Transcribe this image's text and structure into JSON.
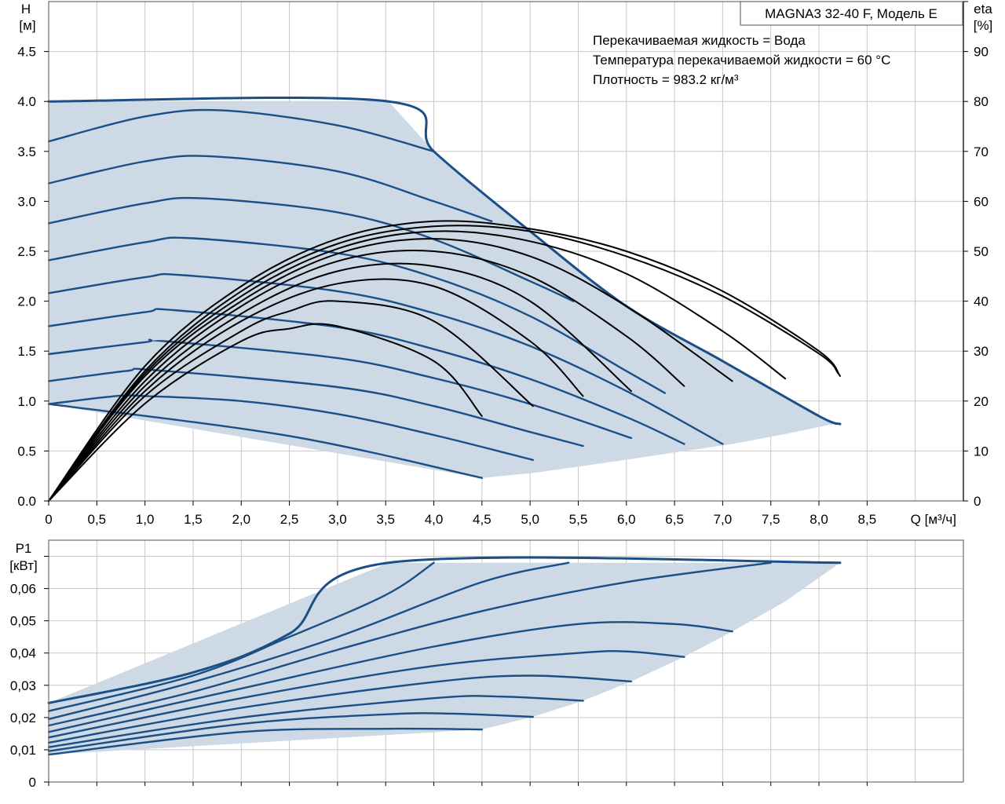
{
  "colors": {
    "envelope_fill": "#cdd9e5",
    "envelope_line": "#1b4f86",
    "eta_line": "#000000",
    "grid": "#c8c8c8"
  },
  "chart_data": [
    {
      "id": "qh",
      "type": "line",
      "title": "MAGNA3 32-40 F, Модель E",
      "info_lines": [
        "Перекачиваемая жидкость = Вода",
        "Температура перекачиваемой жидкости = 60 °C",
        "Плотность = 983.2 кг/м³"
      ],
      "ylabel": [
        "H",
        "[м]"
      ],
      "y2label": [
        "eta",
        "[%]"
      ],
      "xlabel": "Q [м³/ч]",
      "xlim": [
        0,
        9.5
      ],
      "ylim": [
        0,
        5.0
      ],
      "y2lim": [
        0,
        100
      ],
      "x_ticks": [
        0,
        0.5,
        1.0,
        1.5,
        2.0,
        2.5,
        3.0,
        3.5,
        4.0,
        4.5,
        5.0,
        5.5,
        6.0,
        6.5,
        7.0,
        7.5,
        8.0,
        8.5
      ],
      "x_tick_labels": [
        "0",
        "0,5",
        "1,0",
        "1,5",
        "2,0",
        "2,5",
        "3,0",
        "3,5",
        "4,0",
        "4,5",
        "5,0",
        "5,5",
        "6,0",
        "6,5",
        "7,0",
        "7,5",
        "8,0",
        "8,5"
      ],
      "y_ticks": [
        0,
        0.5,
        1.0,
        1.5,
        2.0,
        2.5,
        3.0,
        3.5,
        4.0,
        4.5
      ],
      "y_tick_labels": [
        "0.0",
        "0.5",
        "1.0",
        "1.5",
        "2.0",
        "2.5",
        "3.0",
        "3.5",
        "4.0",
        "4.5"
      ],
      "y2_ticks": [
        0,
        10,
        20,
        30,
        40,
        50,
        60,
        70,
        80,
        90
      ],
      "y2_tick_labels": [
        "0",
        "10",
        "20",
        "30",
        "40",
        "50",
        "60",
        "70",
        "80",
        "90"
      ],
      "grid": true,
      "envelope": [
        [
          0,
          4.0
        ],
        [
          3.53,
          4.0
        ],
        [
          4.0,
          3.5
        ],
        [
          5.0,
          2.7
        ],
        [
          6.0,
          1.95
        ],
        [
          7.0,
          1.4
        ],
        [
          8.0,
          0.85
        ],
        [
          8.2,
          0.78
        ],
        [
          7.65,
          0.67
        ],
        [
          7.1,
          0.57
        ],
        [
          6.6,
          0.5
        ],
        [
          6.05,
          0.42
        ],
        [
          5.55,
          0.35
        ],
        [
          5.03,
          0.28
        ],
        [
          4.5,
          0.23
        ],
        [
          0,
          0.97
        ]
      ],
      "series": [
        {
          "kind": "qh",
          "values": [
            [
              0,
              4.0
            ],
            [
              3.53,
              4.0
            ],
            [
              4.0,
              3.5
            ],
            [
              5.0,
              2.7
            ],
            [
              6.0,
              1.95
            ],
            [
              7.0,
              1.4
            ],
            [
              8.0,
              0.85
            ],
            [
              8.22,
              0.77
            ]
          ]
        },
        {
          "kind": "qh",
          "values": [
            [
              0,
              3.6
            ],
            [
              1.0,
              3.85
            ],
            [
              1.8,
              3.91
            ],
            [
              3.0,
              3.76
            ],
            [
              4.0,
              3.5
            ]
          ]
        },
        {
          "kind": "qh",
          "values": [
            [
              0,
              3.18
            ],
            [
              1.0,
              3.4
            ],
            [
              1.7,
              3.45
            ],
            [
              3.0,
              3.3
            ],
            [
              4.0,
              3.0
            ],
            [
              4.6,
              2.8
            ]
          ]
        },
        {
          "kind": "qh",
          "values": [
            [
              0,
              2.78
            ],
            [
              1.0,
              2.98
            ],
            [
              1.6,
              3.03
            ],
            [
              3.0,
              2.89
            ],
            [
              4.0,
              2.62
            ],
            [
              5.0,
              2.2
            ],
            [
              5.45,
              2.0
            ]
          ]
        },
        {
          "kind": "qh",
          "values": [
            [
              0,
              2.41
            ],
            [
              1.0,
              2.59
            ],
            [
              1.5,
              2.63
            ],
            [
              3.0,
              2.48
            ],
            [
              4.0,
              2.24
            ],
            [
              5.0,
              1.85
            ],
            [
              6.0,
              1.3
            ],
            [
              6.4,
              1.08
            ]
          ]
        },
        {
          "kind": "qh",
          "values": [
            [
              0,
              2.08
            ],
            [
              1.0,
              2.24
            ],
            [
              1.4,
              2.26
            ],
            [
              3.0,
              2.1
            ],
            [
              4.0,
              1.88
            ],
            [
              5.0,
              1.55
            ],
            [
              6.0,
              1.1
            ],
            [
              7.0,
              0.57
            ]
          ]
        },
        {
          "kind": "qh",
          "values": [
            [
              0,
              1.75
            ],
            [
              1.0,
              1.89
            ],
            [
              1.3,
              1.91
            ],
            [
              3.0,
              1.74
            ],
            [
              4.0,
              1.52
            ],
            [
              5.0,
              1.22
            ],
            [
              6.0,
              0.84
            ],
            [
              6.6,
              0.57
            ]
          ]
        },
        {
          "kind": "qh",
          "values": [
            [
              0,
              1.47
            ],
            [
              1.0,
              1.59
            ],
            [
              1.2,
              1.6
            ],
            [
              3.0,
              1.43
            ],
            [
              4.0,
              1.23
            ],
            [
              5.0,
              0.97
            ],
            [
              6.05,
              0.63
            ]
          ]
        },
        {
          "kind": "qh",
          "values": [
            [
              0,
              1.2
            ],
            [
              0.8,
              1.3
            ],
            [
              1.1,
              1.31
            ],
            [
              3.0,
              1.14
            ],
            [
              4.0,
              0.95
            ],
            [
              5.0,
              0.69
            ],
            [
              5.55,
              0.55
            ]
          ]
        },
        {
          "kind": "qh",
          "values": [
            [
              0,
              0.97
            ],
            [
              0.7,
              1.05
            ],
            [
              1.0,
              1.05
            ],
            [
              2.0,
              1.0
            ],
            [
              3.0,
              0.87
            ],
            [
              4.0,
              0.66
            ],
            [
              5.03,
              0.41
            ]
          ]
        },
        {
          "kind": "qh",
          "values": [
            [
              4.5,
              0.23
            ],
            [
              2.5,
              0.65
            ],
            [
              0,
              0.97
            ]
          ]
        },
        {
          "kind": "eta",
          "values": [
            [
              0,
              0
            ],
            [
              1.0,
              27
            ],
            [
              2.0,
              43
            ],
            [
              3.0,
              52.5
            ],
            [
              4.0,
              56
            ],
            [
              5.0,
              54.5
            ],
            [
              6.0,
              50
            ],
            [
              7.0,
              42
            ],
            [
              8.0,
              30
            ],
            [
              8.22,
              25
            ]
          ]
        },
        {
          "kind": "eta",
          "values": [
            [
              0,
              0
            ],
            [
              1.0,
              26
            ],
            [
              2.0,
              42
            ],
            [
              3.0,
              51.5
            ],
            [
              4.0,
              55
            ],
            [
              5.0,
              54
            ],
            [
              6.0,
              49
            ],
            [
              7.0,
              41
            ],
            [
              8.0,
              29.5
            ],
            [
              8.2,
              25.5
            ]
          ]
        },
        {
          "kind": "eta",
          "values": [
            [
              0,
              0
            ],
            [
              1.0,
              25.5
            ],
            [
              2.0,
              41
            ],
            [
              3.0,
              50.5
            ],
            [
              4.0,
              54
            ],
            [
              5.0,
              52
            ],
            [
              6.0,
              45.5
            ],
            [
              7.0,
              34
            ],
            [
              7.65,
              24.5
            ]
          ]
        },
        {
          "kind": "eta",
          "values": [
            [
              0,
              0
            ],
            [
              1.0,
              25
            ],
            [
              2.0,
              40
            ],
            [
              3.0,
              49.5
            ],
            [
              4.0,
              52.5
            ],
            [
              5.0,
              49
            ],
            [
              6.0,
              39
            ],
            [
              7.1,
              24
            ]
          ]
        },
        {
          "kind": "eta",
          "values": [
            [
              0,
              0
            ],
            [
              1.0,
              24
            ],
            [
              2.0,
              39
            ],
            [
              3.0,
              48
            ],
            [
              4.0,
              50
            ],
            [
              5.0,
              45
            ],
            [
              6.0,
              33
            ],
            [
              6.6,
              23
            ]
          ]
        },
        {
          "kind": "eta",
          "values": [
            [
              0,
              0
            ],
            [
              1.0,
              23
            ],
            [
              2.0,
              37.5
            ],
            [
              3.0,
              46
            ],
            [
              4.0,
              47
            ],
            [
              5.0,
              40
            ],
            [
              6.05,
              22
            ]
          ]
        },
        {
          "kind": "eta",
          "values": [
            [
              0,
              0
            ],
            [
              1.0,
              22
            ],
            [
              2.0,
              36
            ],
            [
              3.0,
              43.5
            ],
            [
              4.0,
              43
            ],
            [
              5.0,
              32
            ],
            [
              5.55,
              21
            ]
          ]
        },
        {
          "kind": "eta",
          "values": [
            [
              0,
              0
            ],
            [
              1.0,
              21
            ],
            [
              2.0,
              34
            ],
            [
              2.5,
              38
            ],
            [
              3.0,
              40
            ],
            [
              4.0,
              36
            ],
            [
              5.03,
              19
            ]
          ]
        },
        {
          "kind": "eta",
          "values": [
            [
              0,
              0
            ],
            [
              1.0,
              19.5
            ],
            [
              2.0,
              32
            ],
            [
              2.5,
              34.5
            ],
            [
              3.0,
              35
            ],
            [
              4.0,
              28
            ],
            [
              4.5,
              17
            ]
          ]
        }
      ]
    },
    {
      "id": "p1",
      "type": "line",
      "ylabel": [
        "P1",
        "[кВт]"
      ],
      "xlim": [
        0,
        9.5
      ],
      "ylim": [
        0,
        0.075
      ],
      "y_ticks": [
        0,
        0.01,
        0.02,
        0.03,
        0.04,
        0.05,
        0.06
      ],
      "y_tick_labels": [
        "0",
        "0,01",
        "0,02",
        "0,03",
        "0,04",
        "0,05",
        "0,06"
      ],
      "grid": true,
      "envelope": [
        [
          0,
          0.0245
        ],
        [
          3.53,
          0.068
        ],
        [
          8.22,
          0.068
        ],
        [
          7.65,
          0.056
        ],
        [
          7.1,
          0.0467
        ],
        [
          6.6,
          0.0388
        ],
        [
          6.05,
          0.0312
        ],
        [
          5.55,
          0.0252
        ],
        [
          5.03,
          0.0202
        ],
        [
          4.5,
          0.0163
        ],
        [
          0,
          0.0085
        ]
      ],
      "series": [
        {
          "values": [
            [
              0,
              0.0245
            ],
            [
              1.5,
              0.034
            ],
            [
              2.5,
              0.046
            ],
            [
              3.53,
              0.068
            ],
            [
              8.22,
              0.068
            ]
          ]
        },
        {
          "values": [
            [
              0,
              0.022
            ],
            [
              1.5,
              0.033
            ],
            [
              2.5,
              0.045
            ],
            [
              3.5,
              0.058
            ],
            [
              4.0,
              0.068
            ]
          ]
        },
        {
          "values": [
            [
              0,
              0.0195
            ],
            [
              1.5,
              0.031
            ],
            [
              3.0,
              0.045
            ],
            [
              4.5,
              0.062
            ],
            [
              5.4,
              0.068
            ]
          ]
        },
        {
          "values": [
            [
              0,
              0.0175
            ],
            [
              1.5,
              0.028
            ],
            [
              3.0,
              0.041
            ],
            [
              4.5,
              0.053
            ],
            [
              6.0,
              0.062
            ],
            [
              7.5,
              0.068
            ]
          ]
        },
        {
          "values": [
            [
              0,
              0.0155
            ],
            [
              2.0,
              0.029
            ],
            [
              4.0,
              0.042
            ],
            [
              5.5,
              0.049
            ],
            [
              6.5,
              0.049
            ],
            [
              7.1,
              0.0467
            ]
          ]
        },
        {
          "values": [
            [
              0,
              0.0138
            ],
            [
              2.0,
              0.026
            ],
            [
              4.0,
              0.036
            ],
            [
              5.5,
              0.04
            ],
            [
              6.0,
              0.0405
            ],
            [
              6.6,
              0.0388
            ]
          ]
        },
        {
          "values": [
            [
              0,
              0.0122
            ],
            [
              2.0,
              0.023
            ],
            [
              4.0,
              0.031
            ],
            [
              5.0,
              0.033
            ],
            [
              6.05,
              0.0312
            ]
          ]
        },
        {
          "values": [
            [
              0,
              0.0108
            ],
            [
              2.0,
              0.02
            ],
            [
              4.0,
              0.026
            ],
            [
              4.7,
              0.0265
            ],
            [
              5.55,
              0.0252
            ]
          ]
        },
        {
          "values": [
            [
              0,
              0.0096
            ],
            [
              2.0,
              0.018
            ],
            [
              3.5,
              0.021
            ],
            [
              4.2,
              0.0212
            ],
            [
              5.03,
              0.0202
            ]
          ]
        },
        {
          "values": [
            [
              0,
              0.0085
            ],
            [
              2.0,
              0.0155
            ],
            [
              3.5,
              0.0165
            ],
            [
              4.5,
              0.0163
            ]
          ]
        }
      ]
    }
  ]
}
